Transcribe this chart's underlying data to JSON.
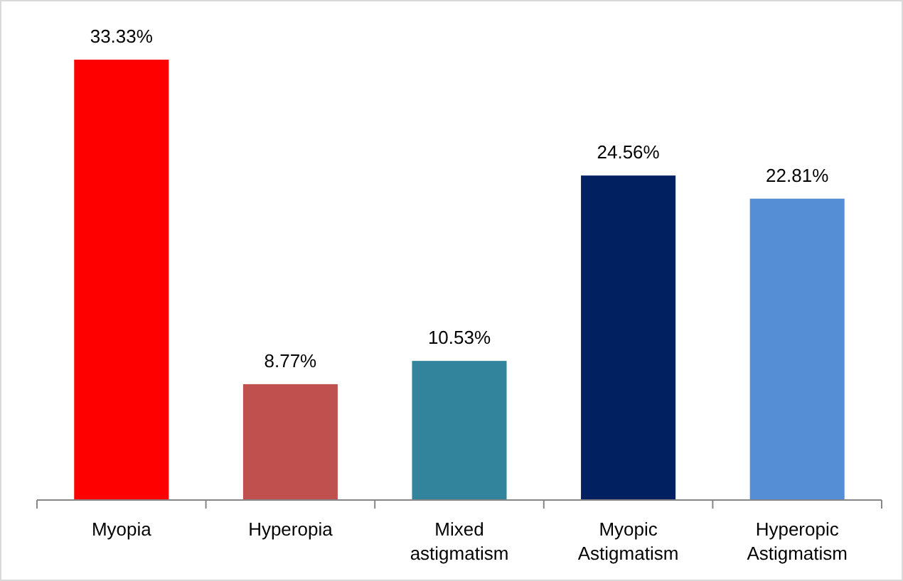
{
  "chart_data": {
    "type": "bar",
    "relative": false,
    "categories": [
      "Myopia",
      "Hyperopia",
      "Mixed astigmatism",
      "Myopic Astigmatism",
      "Hyperopic Astigmatism"
    ],
    "values": [
      33.33,
      8.77,
      10.53,
      24.56,
      22.81
    ],
    "colors": [
      "#ff0000",
      "#c0504d",
      "#31849b",
      "#002060",
      "#558ed5"
    ],
    "value_labels": [
      "33.33%",
      "8.77%",
      "10.53%",
      "24.56%",
      "22.81%"
    ]
  }
}
